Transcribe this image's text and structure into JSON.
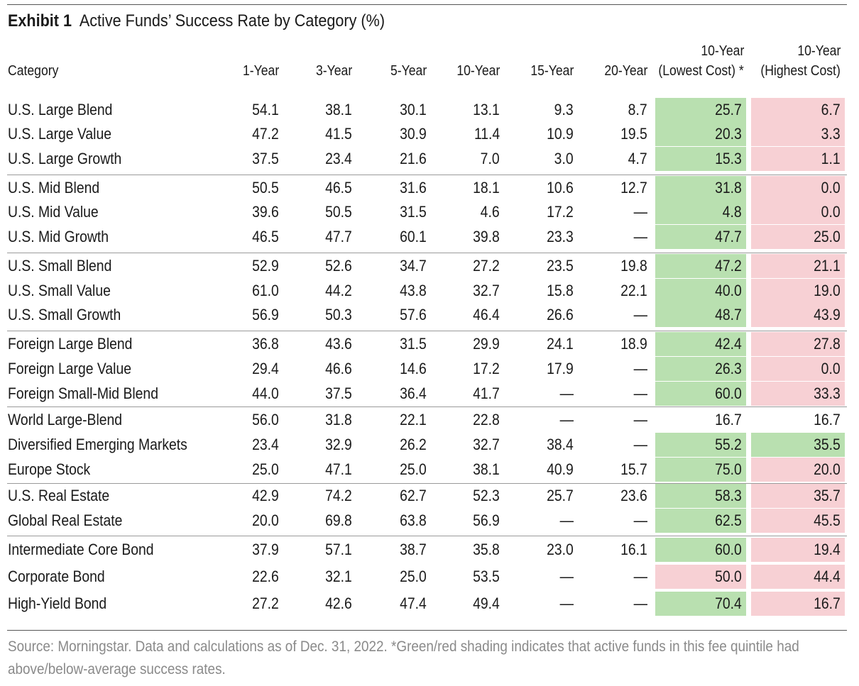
{
  "title": {
    "label": "Exhibit 1",
    "text": "Active Funds’ Success Rate by Category (%)"
  },
  "columns": {
    "category": "Category",
    "y1": "1-Year",
    "y3": "3-Year",
    "y5": "5-Year",
    "y10": "10-Year",
    "y15": "15-Year",
    "y20": "20-Year",
    "low_line1": "10-Year",
    "low_line2": "(Lowest Cost) *",
    "high_line1": "10-Year",
    "high_line2": "(Highest Cost)"
  },
  "colors": {
    "green": "#b9e0b0",
    "red": "#f7d0d4"
  },
  "chart_data": {
    "type": "table",
    "title": "Active Funds’ Success Rate by Category (%)",
    "columns": [
      "Category",
      "1-Year",
      "3-Year",
      "5-Year",
      "10-Year",
      "15-Year",
      "20-Year",
      "10-Year (Lowest Cost) *",
      "10-Year (Highest Cost)"
    ],
    "rows": [
      {
        "category": "U.S. Large Blend",
        "y1": "54.1",
        "y3": "38.1",
        "y5": "30.1",
        "y10": "13.1",
        "y15": "9.3",
        "y20": "8.7",
        "low": "25.7",
        "low_shade": "green",
        "high": "6.7",
        "high_shade": "red"
      },
      {
        "category": "U.S. Large Value",
        "y1": "47.2",
        "y3": "41.5",
        "y5": "30.9",
        "y10": "11.4",
        "y15": "10.9",
        "y20": "19.5",
        "low": "20.3",
        "low_shade": "green",
        "high": "3.3",
        "high_shade": "red"
      },
      {
        "category": "U.S. Large Growth",
        "y1": "37.5",
        "y3": "23.4",
        "y5": "21.6",
        "y10": "7.0",
        "y15": "3.0",
        "y20": "4.7",
        "low": "15.3",
        "low_shade": "green",
        "high": "1.1",
        "high_shade": "red"
      },
      {
        "category": "U.S. Mid Blend",
        "y1": "50.5",
        "y3": "46.5",
        "y5": "31.6",
        "y10": "18.1",
        "y15": "10.6",
        "y20": "12.7",
        "low": "31.8",
        "low_shade": "green",
        "high": "0.0",
        "high_shade": "red"
      },
      {
        "category": "U.S. Mid Value",
        "y1": "39.6",
        "y3": "50.5",
        "y5": "31.5",
        "y10": "4.6",
        "y15": "17.2",
        "y20": "—",
        "low": "4.8",
        "low_shade": "green",
        "high": "0.0",
        "high_shade": "red"
      },
      {
        "category": "U.S. Mid Growth",
        "y1": "46.5",
        "y3": "47.7",
        "y5": "60.1",
        "y10": "39.8",
        "y15": "23.3",
        "y20": "—",
        "low": "47.7",
        "low_shade": "green",
        "high": "25.0",
        "high_shade": "red"
      },
      {
        "category": "U.S. Small Blend",
        "y1": "52.9",
        "y3": "52.6",
        "y5": "34.7",
        "y10": "27.2",
        "y15": "23.5",
        "y20": "19.8",
        "low": "47.2",
        "low_shade": "green",
        "high": "21.1",
        "high_shade": "red"
      },
      {
        "category": "U.S. Small Value",
        "y1": "61.0",
        "y3": "44.2",
        "y5": "43.8",
        "y10": "32.7",
        "y15": "15.8",
        "y20": "22.1",
        "low": "40.0",
        "low_shade": "green",
        "high": "19.0",
        "high_shade": "red"
      },
      {
        "category": "U.S. Small Growth",
        "y1": "56.9",
        "y3": "50.3",
        "y5": "57.6",
        "y10": "46.4",
        "y15": "26.6",
        "y20": "—",
        "low": "48.7",
        "low_shade": "green",
        "high": "43.9",
        "high_shade": "red"
      },
      {
        "category": "Foreign Large Blend",
        "y1": "36.8",
        "y3": "43.6",
        "y5": "31.5",
        "y10": "29.9",
        "y15": "24.1",
        "y20": "18.9",
        "low": "42.4",
        "low_shade": "green",
        "high": "27.8",
        "high_shade": "red"
      },
      {
        "category": "Foreign Large Value",
        "y1": "29.4",
        "y3": "46.6",
        "y5": "14.6",
        "y10": "17.2",
        "y15": "17.9",
        "y20": "—",
        "low": "26.3",
        "low_shade": "green",
        "high": "0.0",
        "high_shade": "red"
      },
      {
        "category": "Foreign Small-Mid Blend",
        "y1": "44.0",
        "y3": "37.5",
        "y5": "36.4",
        "y10": "41.7",
        "y15": "—",
        "y20": "—",
        "low": "60.0",
        "low_shade": "green",
        "high": "33.3",
        "high_shade": "red"
      },
      {
        "category": "World Large-Blend",
        "y1": "56.0",
        "y3": "31.8",
        "y5": "22.1",
        "y10": "22.8",
        "y15": "—",
        "y20": "—",
        "low": "16.7",
        "low_shade": "none",
        "high": "16.7",
        "high_shade": "none"
      },
      {
        "category": "Diversified Emerging Markets",
        "y1": "23.4",
        "y3": "32.9",
        "y5": "26.2",
        "y10": "32.7",
        "y15": "38.4",
        "y20": "—",
        "low": "55.2",
        "low_shade": "green",
        "high": "35.5",
        "high_shade": "green"
      },
      {
        "category": "Europe Stock",
        "y1": "25.0",
        "y3": "47.1",
        "y5": "25.0",
        "y10": "38.1",
        "y15": "40.9",
        "y20": "15.7",
        "low": "75.0",
        "low_shade": "green",
        "high": "20.0",
        "high_shade": "red"
      },
      {
        "category": "U.S. Real Estate",
        "y1": "42.9",
        "y3": "74.2",
        "y5": "62.7",
        "y10": "52.3",
        "y15": "25.7",
        "y20": "23.6",
        "low": "58.3",
        "low_shade": "green",
        "high": "35.7",
        "high_shade": "red"
      },
      {
        "category": "Global Real Estate",
        "y1": "20.0",
        "y3": "69.8",
        "y5": "63.8",
        "y10": "56.9",
        "y15": "—",
        "y20": "—",
        "low": "62.5",
        "low_shade": "green",
        "high": "45.5",
        "high_shade": "red"
      },
      {
        "category": "Intermediate Core Bond",
        "y1": "37.9",
        "y3": "57.1",
        "y5": "38.7",
        "y10": "35.8",
        "y15": "23.0",
        "y20": "16.1",
        "low": "60.0",
        "low_shade": "green",
        "high": "19.4",
        "high_shade": "red"
      },
      {
        "category": "Corporate Bond",
        "y1": "22.6",
        "y3": "32.1",
        "y5": "25.0",
        "y10": "53.5",
        "y15": "—",
        "y20": "—",
        "low": "50.0",
        "low_shade": "red",
        "high": "44.4",
        "high_shade": "red"
      },
      {
        "category": "High-Yield Bond",
        "y1": "27.2",
        "y3": "42.6",
        "y5": "47.4",
        "y10": "49.4",
        "y15": "—",
        "y20": "—",
        "low": "70.4",
        "low_shade": "green",
        "high": "16.7",
        "high_shade": "red"
      }
    ]
  },
  "source": "Source: Morningstar. Data and calculations as of Dec. 31, 2022. *Green/red shading indicates that active funds in this fee quintile had above/below-average success rates."
}
